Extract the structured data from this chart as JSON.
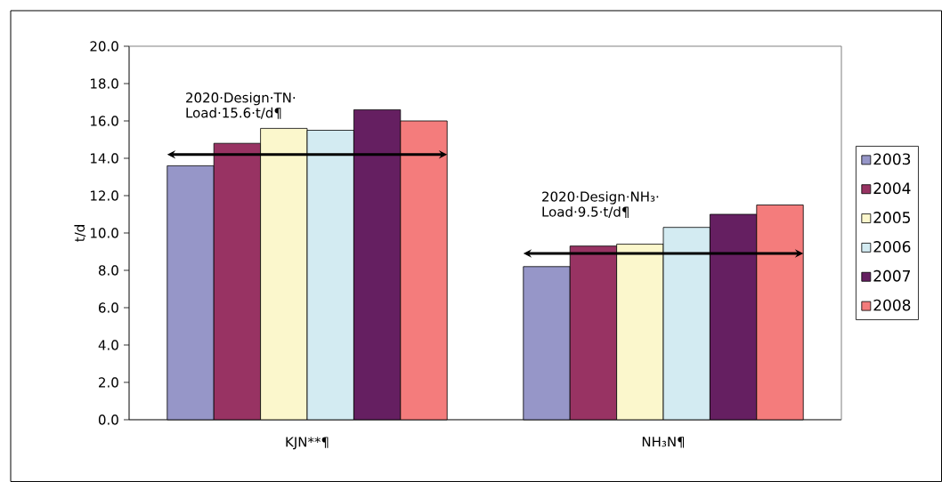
{
  "chart_data": {
    "type": "bar",
    "ylabel": "t/d",
    "categories": [
      "KJN**¶",
      "NH₃N¶"
    ],
    "series": [
      {
        "name": "2003",
        "color": "#9696c8",
        "values": [
          13.6,
          8.2
        ]
      },
      {
        "name": "2004",
        "color": "#983363",
        "values": [
          14.8,
          9.3
        ]
      },
      {
        "name": "2005",
        "color": "#fbf7cc",
        "values": [
          15.6,
          9.4
        ]
      },
      {
        "name": "2006",
        "color": "#d3ebf2",
        "values": [
          15.5,
          10.3
        ]
      },
      {
        "name": "2007",
        "color": "#651f61",
        "values": [
          16.6,
          11.0
        ]
      },
      {
        "name": "2008",
        "color": "#f47c7c",
        "values": [
          16.0,
          11.5
        ]
      }
    ],
    "ylim": [
      0,
      20
    ],
    "yticks": [
      {
        "value": 0,
        "label": "0.0"
      },
      {
        "value": 2,
        "label": "2.0"
      },
      {
        "value": 4,
        "label": "4.0"
      },
      {
        "value": 6,
        "label": "6.0"
      },
      {
        "value": 8,
        "label": "8.0"
      },
      {
        "value": 10,
        "label": "10.0"
      },
      {
        "value": 12,
        "label": "12.0"
      },
      {
        "value": 14,
        "label": "14.0"
      },
      {
        "value": 16,
        "label": "16.0"
      },
      {
        "value": 18,
        "label": "18.0"
      },
      {
        "value": 20,
        "label": "20.0"
      }
    ],
    "annotations": [
      {
        "text": "2020·Design·TN· Load·15.6·t/d¶",
        "x": "KJN**¶",
        "y": 14.2
      },
      {
        "text": "2020·Design·NH₃· Load·9.5·t/d¶",
        "x": "NH₃N¶",
        "y": 8.9
      }
    ],
    "grid": false,
    "legend": "right"
  }
}
